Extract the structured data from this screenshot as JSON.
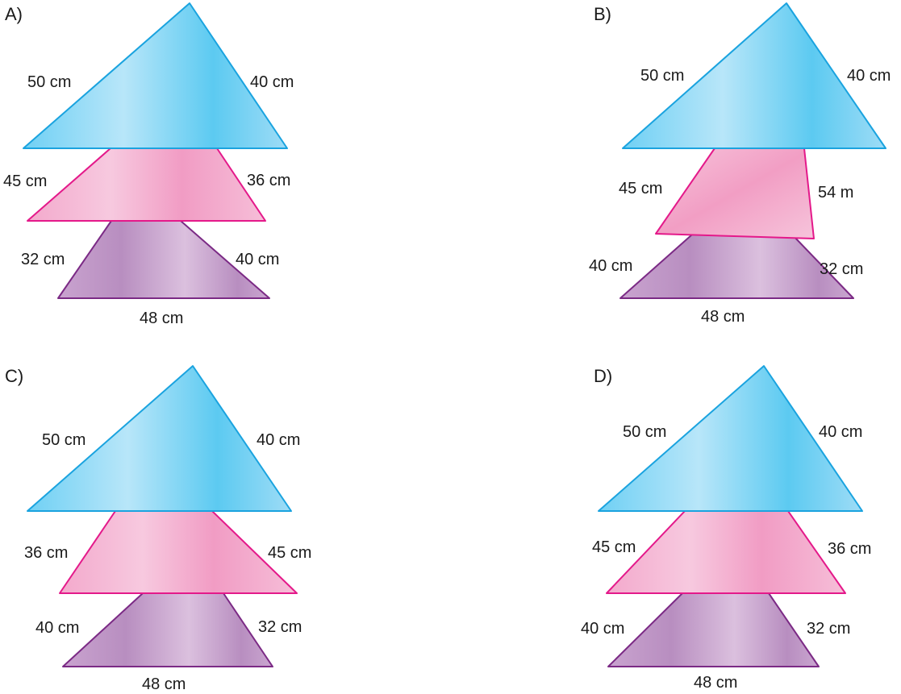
{
  "options": [
    {
      "label": "A)",
      "triangle": {
        "left": "50 cm",
        "right": "40 cm"
      },
      "middle": {
        "left": "45 cm",
        "right": "36 cm"
      },
      "bottom": {
        "left": "32 cm",
        "right": "40 cm",
        "base": "48 cm"
      }
    },
    {
      "label": "B)",
      "triangle": {
        "left": "50 cm",
        "right": "40 cm"
      },
      "middle": {
        "left": "45 cm",
        "right": "54 m"
      },
      "bottom": {
        "left": "40 cm",
        "right": "32 cm",
        "base": "48 cm"
      }
    },
    {
      "label": "C)",
      "triangle": {
        "left": "50 cm",
        "right": "40 cm"
      },
      "middle": {
        "left": "36 cm",
        "right": "45 cm"
      },
      "bottom": {
        "left": "40 cm",
        "right": "32 cm",
        "base": "48 cm"
      }
    },
    {
      "label": "D)",
      "triangle": {
        "left": "50 cm",
        "right": "40 cm"
      },
      "middle": {
        "left": "45 cm",
        "right": "36 cm"
      },
      "bottom": {
        "left": "40 cm",
        "right": "32 cm",
        "base": "48 cm"
      }
    }
  ],
  "colors": {
    "blue_stroke": "#1aa3df",
    "pink_stroke": "#e4198a",
    "purple_stroke": "#7b2a85"
  }
}
